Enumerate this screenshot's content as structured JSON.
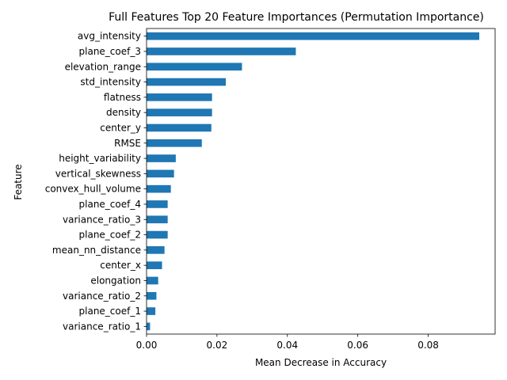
{
  "chart_data": {
    "type": "bar",
    "orientation": "horizontal",
    "title": "Full Features Top 20 Feature Importances (Permutation Importance)",
    "xlabel": "Mean Decrease in Accuracy",
    "ylabel": "Feature",
    "xlim": [
      0,
      0.099
    ],
    "xticks": [
      0.0,
      0.02,
      0.04,
      0.06,
      0.08
    ],
    "xtick_labels": [
      "0.00",
      "0.02",
      "0.04",
      "0.06",
      "0.08"
    ],
    "bar_color": "#1f77b4",
    "grid": false,
    "legend": "none",
    "categories": [
      "avg_intensity",
      "plane_coef_3",
      "elevation_range",
      "std_intensity",
      "flatness",
      "density",
      "center_y",
      "RMSE",
      "height_variability",
      "vertical_skewness",
      "convex_hull_volume",
      "plane_coef_4",
      "variance_ratio_3",
      "plane_coef_2",
      "mean_nn_distance",
      "center_x",
      "elongation",
      "variance_ratio_2",
      "plane_coef_1",
      "variance_ratio_1"
    ],
    "values": [
      0.0945,
      0.0424,
      0.0271,
      0.0225,
      0.0186,
      0.0186,
      0.0184,
      0.0157,
      0.0083,
      0.0078,
      0.0069,
      0.006,
      0.006,
      0.006,
      0.0051,
      0.0044,
      0.0033,
      0.0028,
      0.0025,
      0.001
    ]
  }
}
